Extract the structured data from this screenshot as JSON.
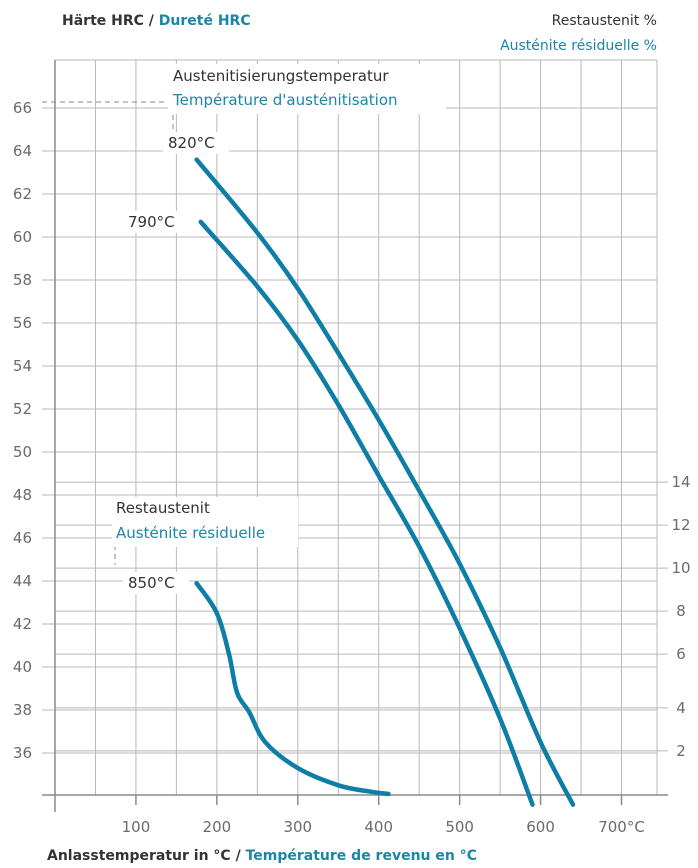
{
  "header": {
    "hardness_de": "Härte HRC",
    "separator": "/",
    "hardness_fr": "Dureté HRC",
    "retained_de": "Restaustenit %",
    "retained_fr": "Austénite résiduelle %"
  },
  "footer": {
    "xlabel_de": "Anlasstemperatur in °C",
    "separator": "/",
    "xlabel_fr": "Température de revenu en °C"
  },
  "annotations": {
    "aust_temp_de": "Austenitisierungstemperatur",
    "aust_temp_fr": "Température d'austénitisation",
    "retained_de": "Restaustenit",
    "retained_fr": "Austénite résiduelle",
    "label_820": "820°C",
    "label_790": "790°C",
    "label_850": "850°C"
  },
  "chart_data": {
    "type": "line",
    "xlabel": "Anlasstemperatur in °C / Température de revenu en °C",
    "ylabel": "Härte HRC / Dureté HRC",
    "y2label": "Restaustenit % / Austénite résiduelle %",
    "xlim": [
      0,
      750
    ],
    "ylim": [
      33.5,
      69
    ],
    "x_ticks": [
      100,
      200,
      300,
      400,
      500,
      600,
      700
    ],
    "x_tick_labels": [
      "100",
      "200",
      "300",
      "400",
      "500",
      "600",
      "700°C"
    ],
    "y_ticks": [
      36,
      38,
      40,
      42,
      44,
      46,
      48,
      50,
      52,
      54,
      56,
      58,
      60,
      62,
      64,
      66
    ],
    "y2_ticks": [
      {
        "label": "2",
        "hrc": 36.1
      },
      {
        "label": "4",
        "hrc": 38.1
      },
      {
        "label": "6",
        "hrc": 40.6
      },
      {
        "label": "8",
        "hrc": 42.6
      },
      {
        "label": "10",
        "hrc": 44.6
      },
      {
        "label": "12",
        "hrc": 46.6
      },
      {
        "label": "14",
        "hrc": 48.6
      }
    ],
    "grid": true,
    "series": [
      {
        "name": "820°C",
        "axis": "hrc",
        "x": [
          175,
          250,
          300,
          350,
          400,
          450,
          500,
          550,
          600,
          640
        ],
        "y": [
          63.6,
          60.2,
          57.6,
          54.6,
          51.5,
          48.2,
          44.8,
          40.9,
          36.5,
          33.6
        ]
      },
      {
        "name": "790°C",
        "axis": "hrc",
        "x": [
          180,
          250,
          300,
          350,
          400,
          450,
          500,
          550,
          590
        ],
        "y": [
          60.7,
          57.7,
          55.2,
          52.2,
          48.9,
          45.6,
          41.8,
          37.6,
          33.6
        ]
      },
      {
        "name": "850°C",
        "axis": "retained",
        "x": [
          175,
          200,
          215,
          225,
          240,
          260,
          300,
          350,
          390,
          412
        ],
        "y": [
          43.9,
          42.5,
          40.6,
          38.8,
          37.9,
          36.5,
          35.3,
          34.5,
          34.2,
          34.1
        ]
      }
    ]
  }
}
